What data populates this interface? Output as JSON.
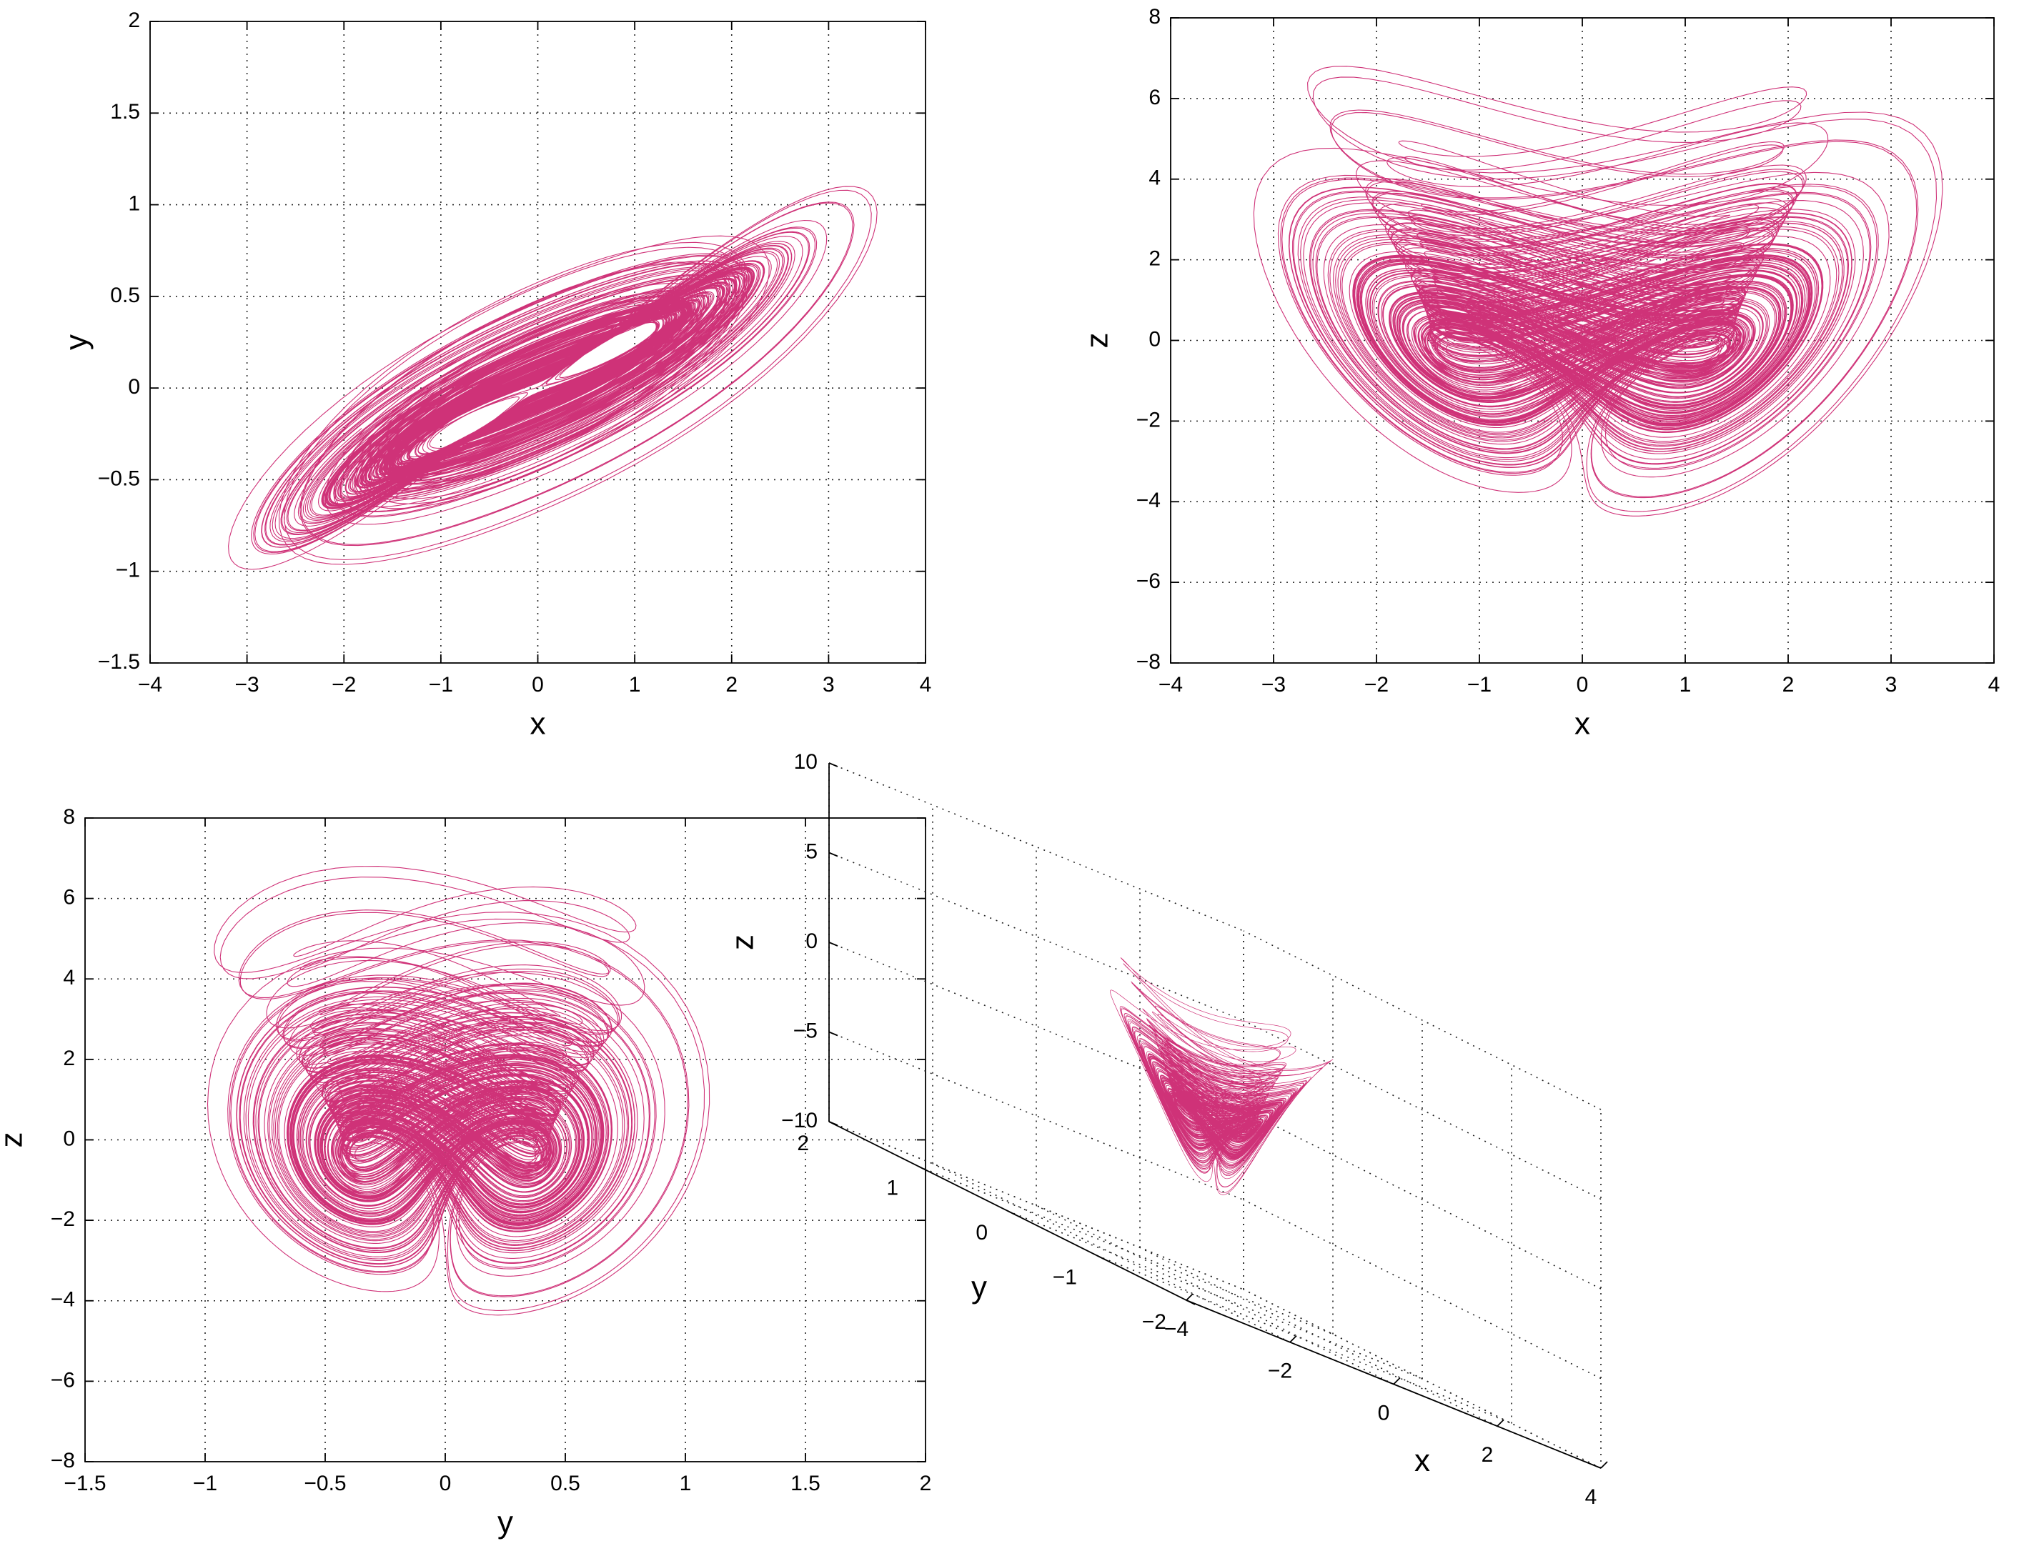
{
  "chart_data": [
    {
      "type": "line",
      "panel": "top-left",
      "xlabel": "x",
      "ylabel": "y",
      "xlim": [
        -4,
        4
      ],
      "ylim": [
        -1.5,
        2
      ],
      "xticks": [
        -4,
        -3,
        -2,
        -1,
        0,
        1,
        2,
        3,
        4
      ],
      "yticks": [
        -1.5,
        -1,
        -0.5,
        0,
        0.5,
        1,
        1.5,
        2
      ],
      "xtick_labels": [
        "−4",
        "−3",
        "−2",
        "−1",
        "0",
        "1",
        "2",
        "3",
        "4"
      ],
      "ytick_labels": [
        "−1.5",
        "−1",
        "−0.5",
        "0",
        "0.5",
        "1",
        "1.5",
        "2"
      ],
      "grid": true,
      "projection": "x-y",
      "series": [
        {
          "color": "#cf3278"
        }
      ]
    },
    {
      "type": "line",
      "panel": "top-right",
      "xlabel": "x",
      "ylabel": "z",
      "xlim": [
        -4,
        4
      ],
      "ylim": [
        -8,
        8
      ],
      "xticks": [
        -4,
        -3,
        -2,
        -1,
        0,
        1,
        2,
        3,
        4
      ],
      "yticks": [
        -8,
        -6,
        -4,
        -2,
        0,
        2,
        4,
        6,
        8
      ],
      "xtick_labels": [
        "−4",
        "−3",
        "−2",
        "−1",
        "0",
        "1",
        "2",
        "3",
        "4"
      ],
      "ytick_labels": [
        "−8",
        "−6",
        "−4",
        "−2",
        "0",
        "2",
        "4",
        "6",
        "8"
      ],
      "grid": true,
      "projection": "x-z",
      "series": [
        {
          "color": "#cf3278"
        }
      ]
    },
    {
      "type": "line",
      "panel": "bottom-left",
      "xlabel": "y",
      "ylabel": "z",
      "xlim": [
        -1.5,
        2
      ],
      "ylim": [
        -8,
        8
      ],
      "xticks": [
        -1.5,
        -1,
        -0.5,
        0,
        0.5,
        1,
        1.5,
        2
      ],
      "yticks": [
        -8,
        -6,
        -4,
        -2,
        0,
        2,
        4,
        6,
        8
      ],
      "xtick_labels": [
        "−1.5",
        "−1",
        "−0.5",
        "0",
        "0.5",
        "1",
        "1.5",
        "2"
      ],
      "ytick_labels": [
        "−8",
        "−6",
        "−4",
        "−2",
        "0",
        "2",
        "4",
        "6",
        "8"
      ],
      "grid": true,
      "projection": "y-z",
      "series": [
        {
          "color": "#cf3278"
        }
      ]
    },
    {
      "type": "line",
      "panel": "bottom-right",
      "view": "3d",
      "xlabel": "x",
      "ylabel": "y",
      "zlabel": "z",
      "xlim": [
        -4,
        4
      ],
      "ylim": [
        -2,
        2
      ],
      "zlim": [
        -10,
        10
      ],
      "xticks": [
        -4,
        -2,
        0,
        2,
        4
      ],
      "yticks": [
        -2,
        -1,
        0,
        1,
        2
      ],
      "zticks": [
        -10,
        -5,
        0,
        5,
        10
      ],
      "xtick_labels": [
        "−4",
        "−2",
        "0",
        "2",
        "4"
      ],
      "ytick_labels": [
        "−2",
        "−1",
        "0",
        "1",
        "2"
      ],
      "ztick_labels": [
        "−10",
        "−5",
        "0",
        "5",
        "10"
      ],
      "grid": true,
      "series": [
        {
          "color": "#cf3278"
        }
      ]
    }
  ]
}
